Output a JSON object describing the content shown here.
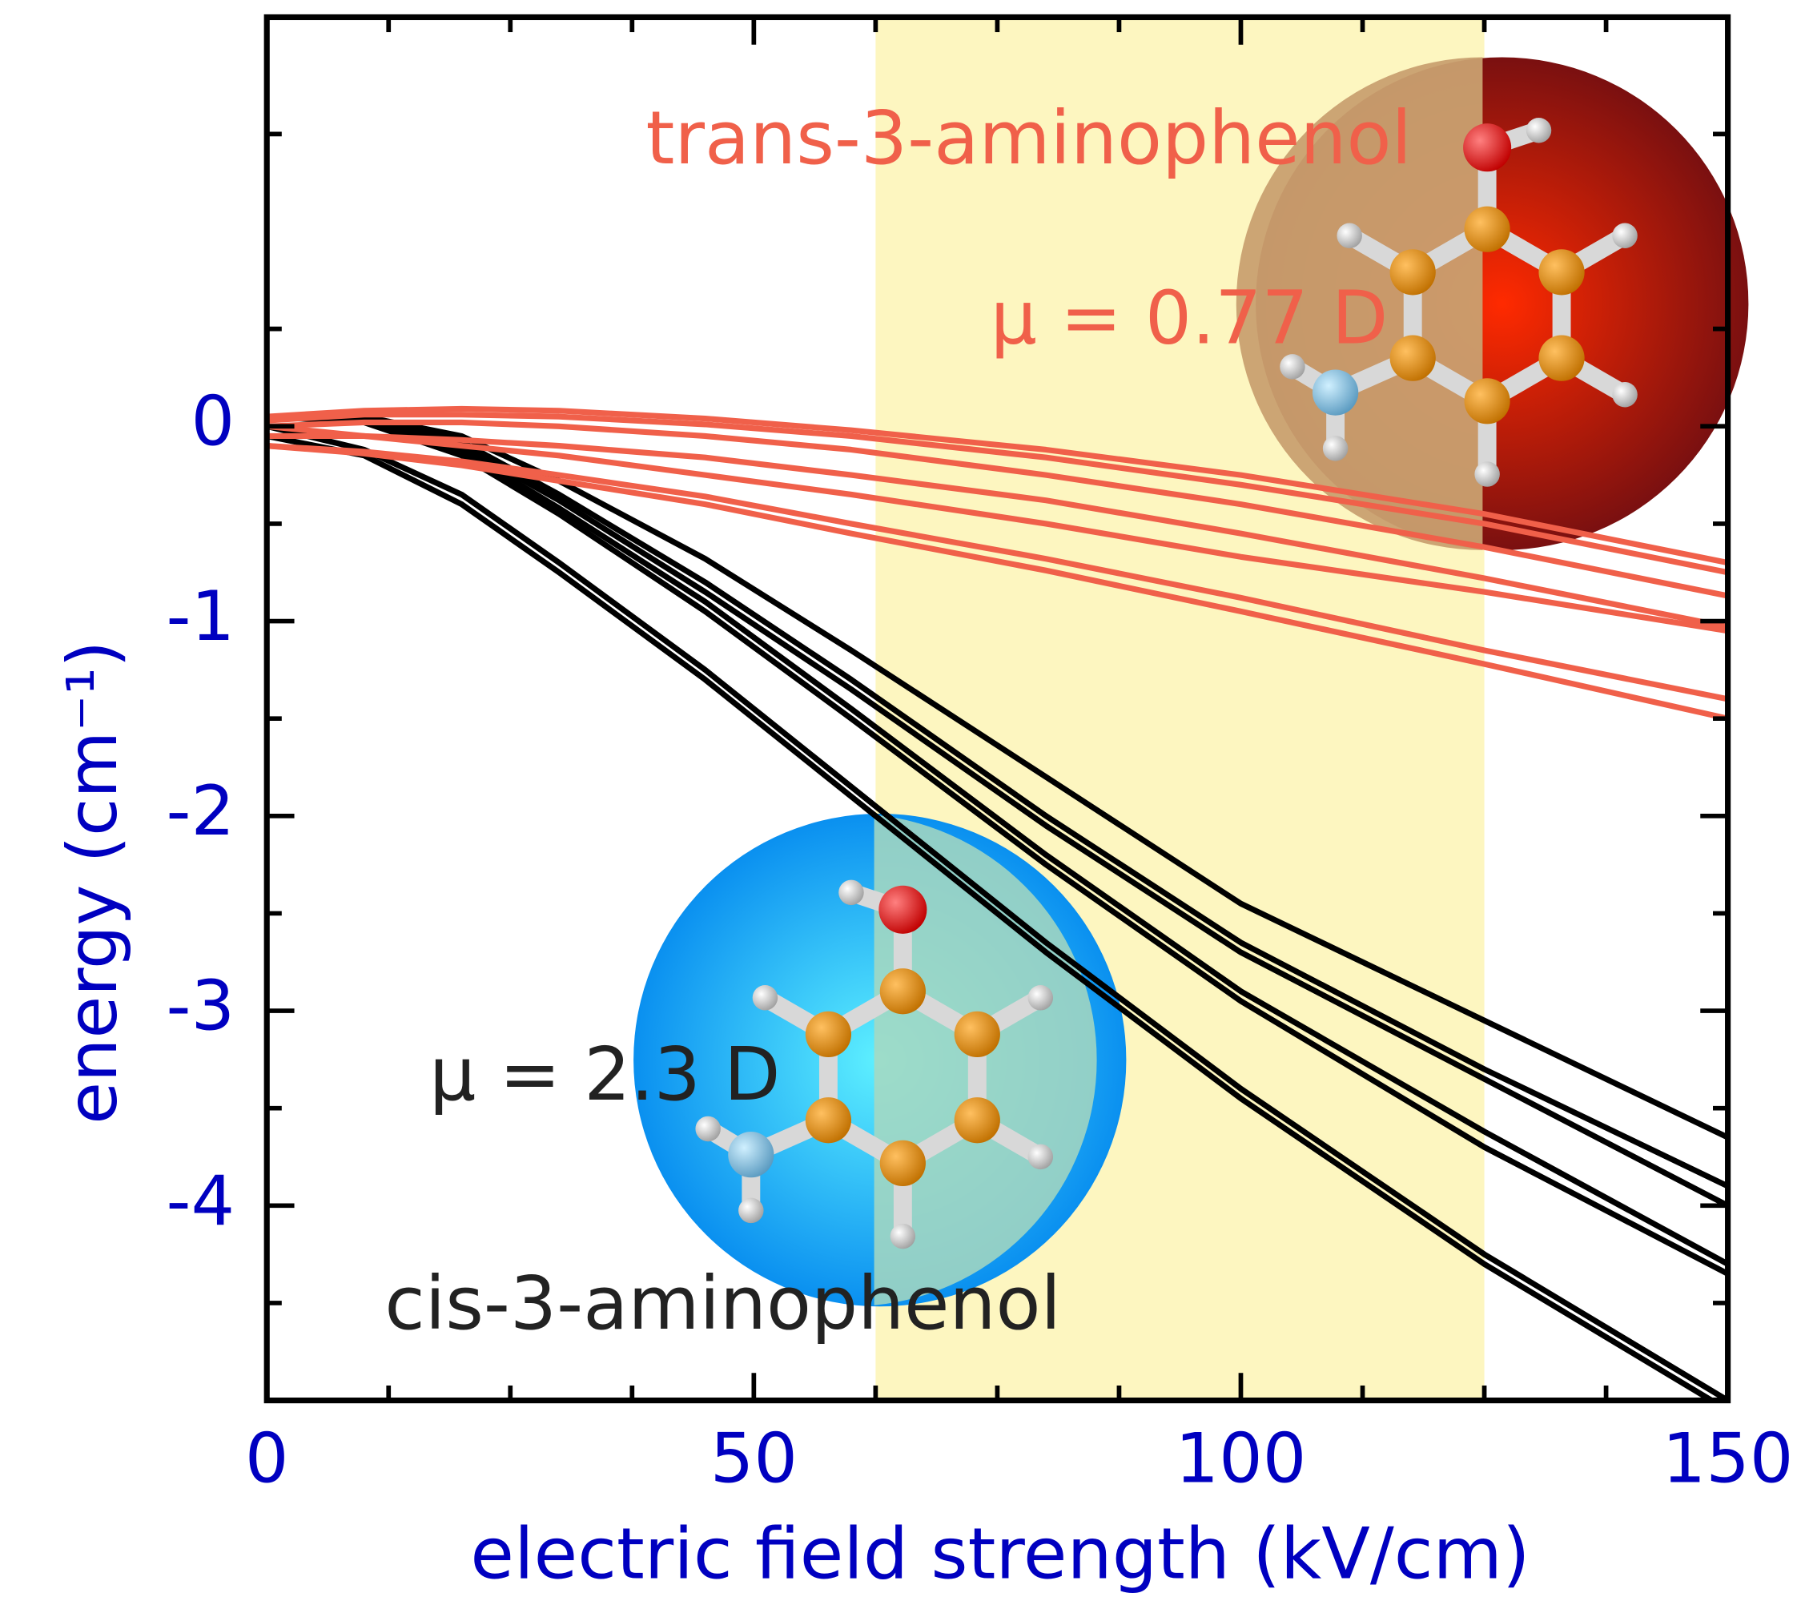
{
  "chart_data": {
    "type": "line",
    "x_label": "electric field strength (kV/cm)",
    "y_label": "energy (cm⁻¹)",
    "annotations": [
      "trans-3-aminophenol",
      "μ = 0.77 D",
      "μ = 2.3 D",
      "cis-3-aminophenol"
    ],
    "x": [
      0,
      10,
      20,
      30,
      45,
      60,
      80,
      100,
      125,
      150
    ],
    "series": [
      {
        "color": "#000000",
        "values": [
          -0.05,
          -0.15,
          -0.4,
          -0.75,
          -1.3,
          -1.9,
          -2.7,
          -3.45,
          -4.3,
          -5.05
        ]
      },
      {
        "color": "#000000",
        "values": [
          0,
          -0.12,
          -0.35,
          -0.7,
          -1.25,
          -1.85,
          -2.65,
          -3.4,
          -4.25,
          -5.0
        ]
      },
      {
        "color": "#000000",
        "values": [
          0.05,
          0.02,
          -0.15,
          -0.45,
          -0.95,
          -1.5,
          -2.25,
          -2.95,
          -3.7,
          -4.35
        ]
      },
      {
        "color": "#000000",
        "values": [
          0.05,
          0.03,
          -0.12,
          -0.42,
          -0.9,
          -1.45,
          -2.2,
          -2.9,
          -3.62,
          -4.3
        ]
      },
      {
        "color": "#000000",
        "values": [
          0.05,
          0.04,
          -0.1,
          -0.38,
          -0.85,
          -1.35,
          -2.05,
          -2.7,
          -3.35,
          -4.0
        ]
      },
      {
        "color": "#000000",
        "values": [
          0.05,
          0.04,
          -0.08,
          -0.35,
          -0.8,
          -1.3,
          -2.0,
          -2.65,
          -3.3,
          -3.9
        ]
      },
      {
        "color": "#000000",
        "values": [
          0.05,
          0.05,
          -0.05,
          -0.28,
          -0.68,
          -1.15,
          -1.8,
          -2.45,
          -3.05,
          -3.65
        ]
      },
      {
        "color": "#f0604a",
        "values": [
          0.05,
          0.08,
          0.09,
          0.08,
          0.04,
          -0.02,
          -0.12,
          -0.25,
          -0.45,
          -0.7
        ]
      },
      {
        "color": "#f0604a",
        "values": [
          0.03,
          0.06,
          0.06,
          0.05,
          0.01,
          -0.05,
          -0.16,
          -0.3,
          -0.5,
          -0.75
        ]
      },
      {
        "color": "#f0604a",
        "values": [
          0,
          0.02,
          0.02,
          0,
          -0.05,
          -0.12,
          -0.25,
          -0.4,
          -0.62,
          -0.87
        ]
      },
      {
        "color": "#f0604a",
        "values": [
          -0.05,
          -0.05,
          -0.07,
          -0.1,
          -0.16,
          -0.25,
          -0.38,
          -0.55,
          -0.78,
          -1.03
        ]
      },
      {
        "color": "#f0604a",
        "values": [
          0,
          -0.05,
          -0.1,
          -0.15,
          -0.25,
          -0.35,
          -0.5,
          -0.67,
          -0.85,
          -1.05
        ]
      },
      {
        "color": "#f0604a",
        "values": [
          -0.1,
          -0.13,
          -0.18,
          -0.25,
          -0.36,
          -0.5,
          -0.68,
          -0.88,
          -1.15,
          -1.4
        ]
      },
      {
        "color": "#f0604a",
        "values": [
          -0.1,
          -0.14,
          -0.2,
          -0.28,
          -0.4,
          -0.55,
          -0.74,
          -0.95,
          -1.22,
          -1.5
        ]
      }
    ],
    "xlim": [
      0,
      150
    ],
    "ylim": [
      -5,
      2.1
    ],
    "xticks": [
      0,
      50,
      100,
      150
    ],
    "xticks_minor": [
      12.5,
      25,
      37.5,
      62.5,
      75,
      87.5,
      112.5,
      125,
      137.5
    ],
    "yticks": [
      -4,
      -3,
      -2,
      -1,
      0
    ],
    "yticks_minor": [
      -4.5,
      -3.5,
      -2.5,
      -1.5,
      -0.5,
      0.5,
      1.5
    ],
    "shaded_xrange": [
      62.5,
      125
    ],
    "shaded_color": "#fdf6c0"
  }
}
